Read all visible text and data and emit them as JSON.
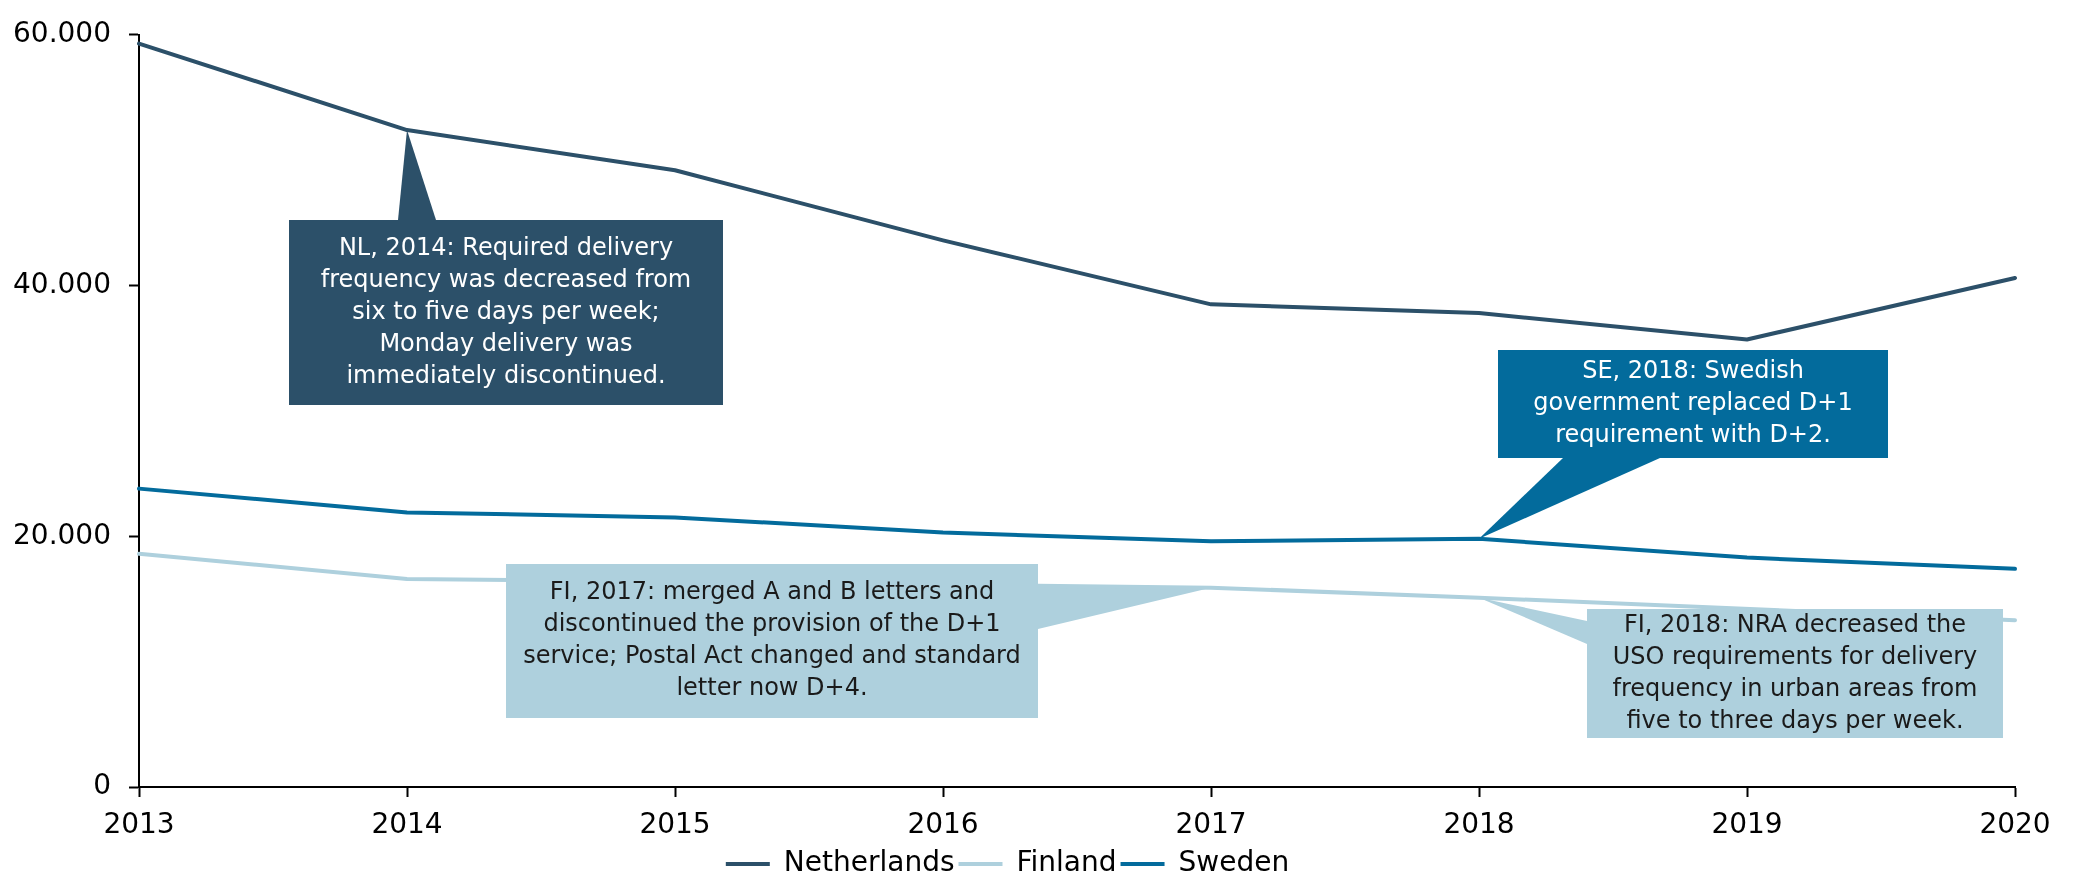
{
  "chart_data": {
    "type": "line",
    "categories": [
      "2013",
      "2014",
      "2015",
      "2016",
      "2017",
      "2018",
      "2019",
      "2020"
    ],
    "series": [
      {
        "name": "Netherlands",
        "color": "#2c5069",
        "values": [
          59300,
          52400,
          49200,
          43600,
          38500,
          37800,
          35700,
          40600
        ]
      },
      {
        "name": "Finland",
        "color": "#aed0dd",
        "values": [
          18600,
          16600,
          null,
          null,
          15900,
          15100,
          null,
          13300
        ]
      },
      {
        "name": "Sweden",
        "color": "#036b9c",
        "values": [
          23800,
          21900,
          21500,
          20300,
          19600,
          19800,
          18300,
          17400
        ]
      }
    ],
    "ylim": [
      0,
      60000
    ],
    "yticks": [
      0,
      {
        "value": 20000,
        "label": "20.000"
      },
      {
        "value": 40000,
        "label": "40.000"
      },
      {
        "value": 60000,
        "label": "60.000"
      }
    ],
    "legend": "bottom",
    "annotations": [
      {
        "text": "NL, 2014: Required delivery frequency was decreased from six to five days per week; Monday delivery was immediately discontinued.",
        "x": "2014",
        "y": 52400
      },
      {
        "text": "SE, 2018: Swedish government replaced D+1 requirement with D+2.",
        "x": "2018",
        "y": 19800
      },
      {
        "text": "FI, 2017: merged A and B letters and discontinued the provision of the D+1 service; Postal Act changed and standard letter now D+4.",
        "x": "2017",
        "y": 15900
      },
      {
        "text": "FI, 2018: NRA decreased the USO requirements for delivery frequency in urban areas from five to three days per week.",
        "x": "2018",
        "y": 15100
      }
    ]
  }
}
